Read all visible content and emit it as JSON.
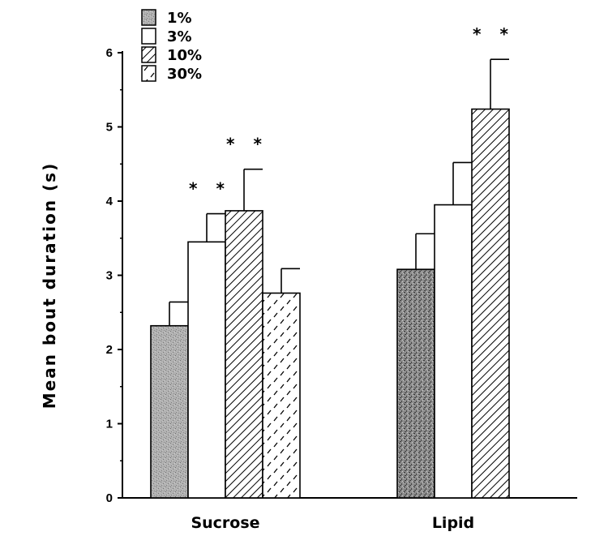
{
  "chart_data": {
    "type": "bar",
    "title": "",
    "xlabel": "",
    "ylabel": "Mean bout duration (s)",
    "ylim": [
      0,
      6
    ],
    "yticks": [
      "0",
      "1",
      "2",
      "3",
      "4",
      "5",
      "6"
    ],
    "categories": [
      "Sucrose",
      "Lipid"
    ],
    "grid": false,
    "legend_position": "top-left",
    "series": [
      {
        "name": "1%",
        "pattern": "stipple-gray",
        "values": [
          2.32,
          3.08
        ],
        "errors": [
          0.32,
          0.48
        ]
      },
      {
        "name": "3%",
        "pattern": "white",
        "values": [
          3.45,
          3.95
        ],
        "errors": [
          0.38,
          0.57
        ]
      },
      {
        "name": "10%",
        "pattern": "diagonal-hatch",
        "values": [
          3.87,
          5.24
        ],
        "errors": [
          0.56,
          0.67
        ]
      },
      {
        "name": "30%",
        "pattern": "dashes",
        "values": [
          2.76,
          null
        ],
        "errors": [
          0.33,
          null
        ]
      }
    ],
    "significance": [
      {
        "category": "Sucrose",
        "series": "3%",
        "label": "* *"
      },
      {
        "category": "Sucrose",
        "series": "10%",
        "label": "* *"
      },
      {
        "category": "Lipid",
        "series": "10%",
        "label": "* *"
      }
    ],
    "colors": {
      "ink": "#000000",
      "stipple": "#a9a9a9",
      "stipple_dark": "#6b6b6b",
      "background": "#ffffff"
    }
  }
}
